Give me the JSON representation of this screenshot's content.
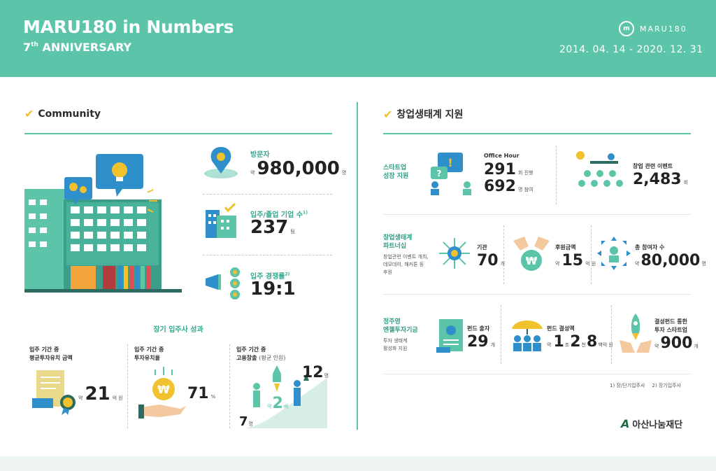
{
  "header": {
    "title": "MARU180 in Numbers",
    "anniversary": "7",
    "anniversary_sup": "th",
    "anniversary_text": "ANNIVERSARY",
    "logo": "MARU180",
    "date_range": "2014. 04. 14 - 2020. 12. 31"
  },
  "colors": {
    "accent": "#5cc4a9",
    "yellow": "#f2c12e",
    "dark_teal": "#3e9d8a",
    "blue": "#2f8fca"
  },
  "community": {
    "title": "Community",
    "visitors": {
      "label": "방문자",
      "prefix": "약",
      "value": "980,000",
      "unit": "명"
    },
    "companies": {
      "label": "입주/졸업 기업 수",
      "note": "1)",
      "value": "237",
      "unit": "팀"
    },
    "competition": {
      "label": "입주 경쟁률",
      "note": "2)",
      "value": "19:1"
    },
    "longterm_title": "장기 입주사 성과",
    "investment": {
      "label1": "입주 기간 중",
      "label2": "평균투자유치 금액",
      "prefix": "약",
      "value": "21",
      "unit": "억 원"
    },
    "invest_rate": {
      "label1": "입주 기간 중",
      "label2": "투자유치율",
      "value": "71",
      "unit": "%"
    },
    "jobs": {
      "label1": "입주 기간 중",
      "label2": "고용창출",
      "label2b": "(평균 인원)",
      "start": "7",
      "start_unit": "명",
      "end": "12",
      "end_unit": "명",
      "mult_prefix": "약",
      "mult": "2",
      "mult_unit": "배"
    }
  },
  "ecosystem": {
    "title": "창업생태계 지원",
    "growth": {
      "label": "스타트업\n성장 지원",
      "office_hour": "Office Hour",
      "sessions": "291",
      "sessions_unit": "회 진행",
      "people": "692",
      "people_unit": "명 참여",
      "events_label": "창업 관련 이벤트",
      "events": "2,483",
      "events_unit": "회"
    },
    "partnership": {
      "label": "창업생태계\n파트너십",
      "desc": "창업관련 이벤트 개최,\n데모데이, 해커톤 등\n후원",
      "orgs_label": "기관",
      "orgs": "70",
      "orgs_unit": "개",
      "support_label": "후원금액",
      "support_prefix": "약",
      "support": "15",
      "support_unit": "억 원",
      "participants_label": "총 참여자 수",
      "participants_prefix": "약",
      "participants": "80,000",
      "participants_unit": "명"
    },
    "angel": {
      "label": "정주영\n엔젤투자기금",
      "desc": "투자 생태계\n활성화 지원",
      "fund_label": "펀드 출자",
      "fund": "29",
      "fund_unit": "개",
      "size_label": "펀드 결성액",
      "size_prefix": "약",
      "size_a": "1",
      "size_a_unit": "조",
      "size_b": "2",
      "size_b_unit": "천",
      "size_c": "8",
      "size_c_unit": "백억 원",
      "startups_label1": "결성펀드 통한",
      "startups_label2": "투자 스타트업",
      "startups_prefix": "약",
      "startups": "900",
      "startups_unit": "개"
    },
    "footnote1": "1) 장/단기입주사",
    "footnote2": "2) 장기입주사",
    "brand": "아산나눔재단"
  }
}
